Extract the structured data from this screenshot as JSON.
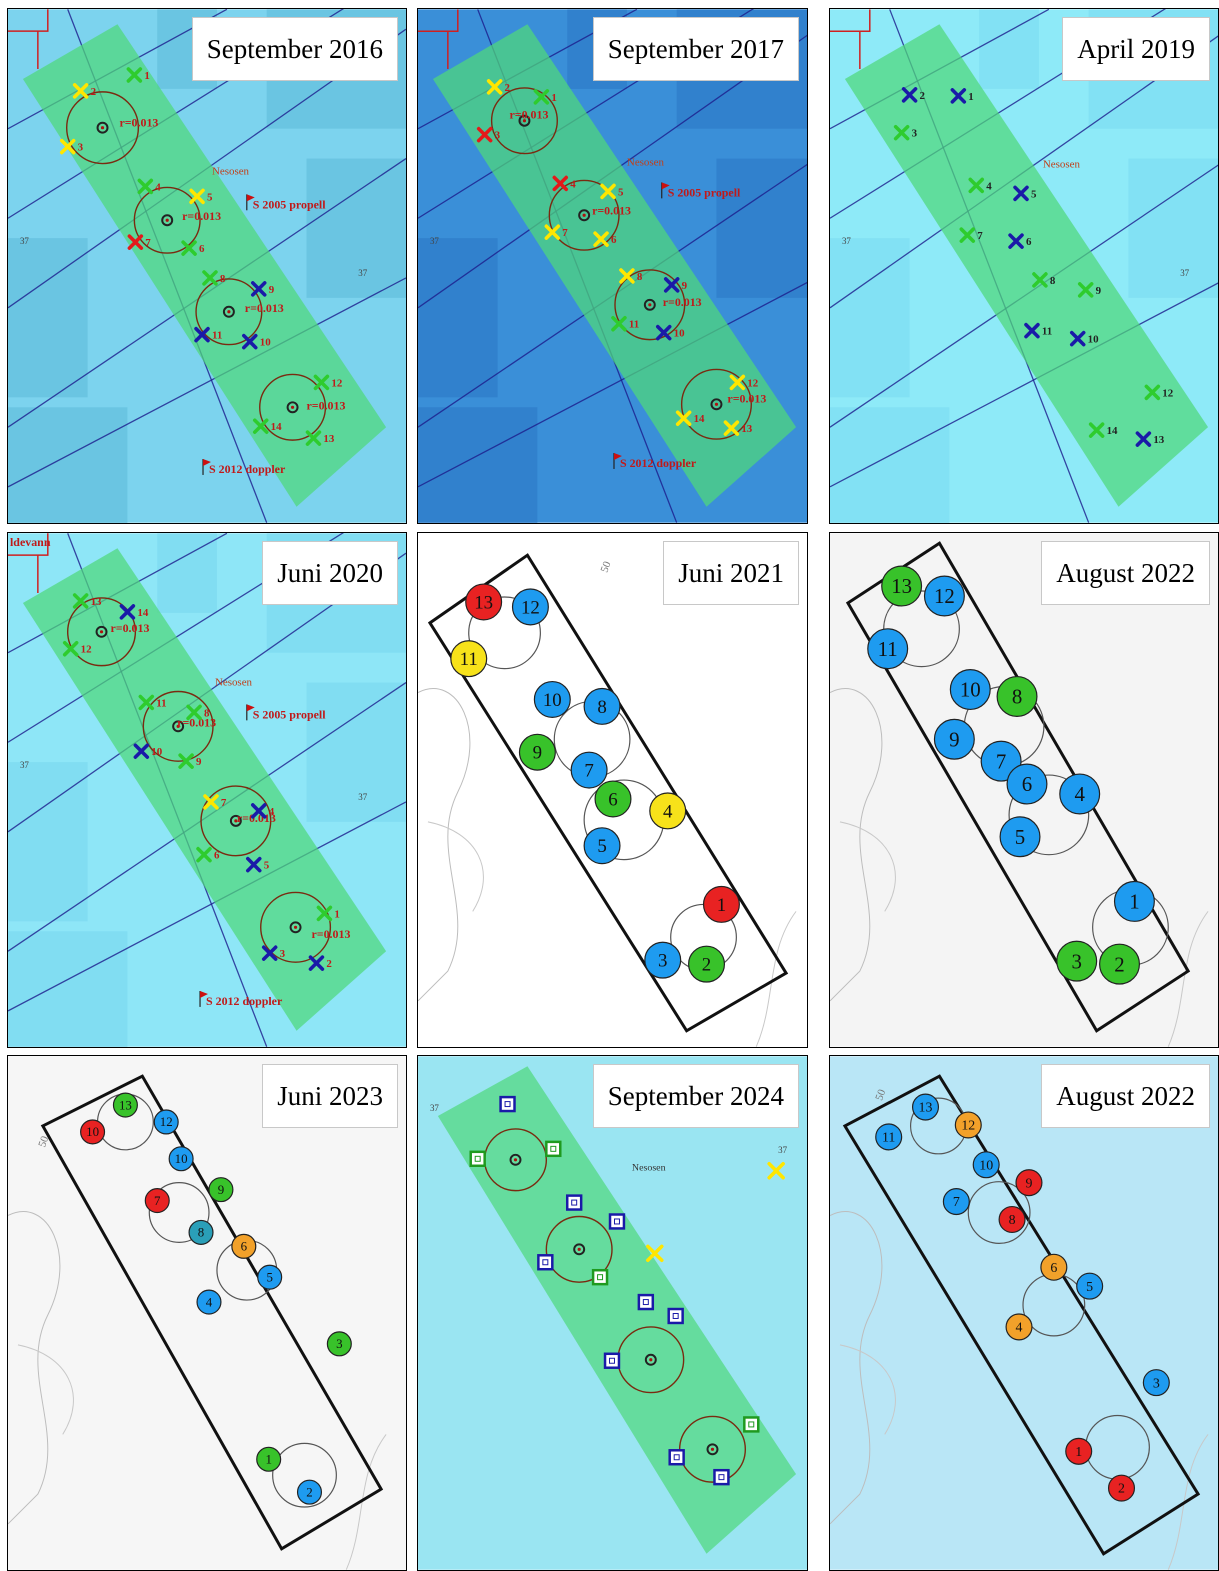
{
  "panels": [
    {
      "title": "September 2016",
      "type": "map",
      "bg": "#7cd3ee",
      "bg2": "#5bbad9",
      "place": "Nesosen",
      "flags": [
        "S 2005 propell",
        "S 2012 doppler"
      ],
      "rings": [
        {
          "label": "r=0.013"
        },
        {
          "label": "r=0.013"
        },
        {
          "label": "r=0.013"
        },
        {
          "label": "r=0.013"
        }
      ],
      "markers": [
        {
          "n": "1",
          "c": "green"
        },
        {
          "n": "2",
          "c": "yellow"
        },
        {
          "n": "3",
          "c": "yellow"
        },
        {
          "n": "4",
          "c": "green"
        },
        {
          "n": "5",
          "c": "yellow"
        },
        {
          "n": "6",
          "c": "green"
        },
        {
          "n": "7",
          "c": "red"
        },
        {
          "n": "8",
          "c": "green"
        },
        {
          "n": "9",
          "c": "blue"
        },
        {
          "n": "10",
          "c": "blue"
        },
        {
          "n": "11",
          "c": "blue"
        },
        {
          "n": "12",
          "c": "green"
        },
        {
          "n": "13",
          "c": "green"
        },
        {
          "n": "14",
          "c": "green"
        }
      ],
      "depths": [
        "37",
        "37"
      ]
    },
    {
      "title": "September 2017",
      "type": "map",
      "bg": "#3a8fd8",
      "bg2": "#2a77c4",
      "place": "Nesosen",
      "flags": [
        "S 2005 propell",
        "S 2012 doppler"
      ],
      "rings": [
        {
          "label": "r=0.013"
        },
        {
          "label": "r=0.013"
        },
        {
          "label": "r=0.013"
        },
        {
          "label": "r=0.013"
        }
      ],
      "markers": [
        {
          "n": "1",
          "c": "green"
        },
        {
          "n": "2",
          "c": "yellow"
        },
        {
          "n": "3",
          "c": "red"
        },
        {
          "n": "4",
          "c": "red"
        },
        {
          "n": "5",
          "c": "yellow"
        },
        {
          "n": "6",
          "c": "yellow"
        },
        {
          "n": "7",
          "c": "yellow"
        },
        {
          "n": "8",
          "c": "yellow"
        },
        {
          "n": "9",
          "c": "blue"
        },
        {
          "n": "10",
          "c": "blue"
        },
        {
          "n": "11",
          "c": "green"
        },
        {
          "n": "12",
          "c": "yellow"
        },
        {
          "n": "13",
          "c": "yellow"
        },
        {
          "n": "14",
          "c": "yellow"
        }
      ],
      "depths": [
        "37"
      ]
    },
    {
      "title": "April 2019",
      "type": "map",
      "bg": "#8eeaf8",
      "bg2": "#78d8f0",
      "place": "Nesosen",
      "flags": [],
      "rings": [],
      "markers": [
        {
          "n": "1",
          "c": "blue"
        },
        {
          "n": "2",
          "c": "blue"
        },
        {
          "n": "3",
          "c": "green"
        },
        {
          "n": "4",
          "c": "green"
        },
        {
          "n": "5",
          "c": "blue"
        },
        {
          "n": "6",
          "c": "blue"
        },
        {
          "n": "7",
          "c": "green"
        },
        {
          "n": "8",
          "c": "green"
        },
        {
          "n": "9",
          "c": "green"
        },
        {
          "n": "10",
          "c": "blue"
        },
        {
          "n": "11",
          "c": "blue"
        },
        {
          "n": "12",
          "c": "green"
        },
        {
          "n": "13",
          "c": "blue"
        },
        {
          "n": "14",
          "c": "green"
        }
      ],
      "depths": [
        "37",
        "37"
      ]
    },
    {
      "title": "Juni 2020",
      "type": "map",
      "bg": "#8ee6f7",
      "bg2": "#76d6ee",
      "place": "Nesosen",
      "flags": [
        "S 2005 propell",
        "S 2012 doppler"
      ],
      "corner_text": "ldevann",
      "rings": [
        {
          "label": "r=0.013"
        },
        {
          "label": "r=0.013"
        },
        {
          "label": "r=0.013"
        },
        {
          "label": "r=0.013"
        }
      ],
      "markers": [
        {
          "n": "13",
          "c": "green"
        },
        {
          "n": "14",
          "c": "blue"
        },
        {
          "n": "12",
          "c": "green"
        },
        {
          "n": "11",
          "c": "green"
        },
        {
          "n": "8",
          "c": "green"
        },
        {
          "n": "10",
          "c": "blue"
        },
        {
          "n": "9",
          "c": "green"
        },
        {
          "n": "7",
          "c": "yellow"
        },
        {
          "n": "4",
          "c": "blue"
        },
        {
          "n": "6",
          "c": "green"
        },
        {
          "n": "5",
          "c": "blue"
        },
        {
          "n": "1",
          "c": "green"
        },
        {
          "n": "3",
          "c": "blue"
        },
        {
          "n": "2",
          "c": "blue"
        }
      ],
      "depths": [
        "37",
        "37"
      ]
    },
    {
      "title": "Juni 2021",
      "type": "circles",
      "bg": "#ffffff",
      "contour": "50",
      "markers": [
        {
          "n": "13",
          "c": "red"
        },
        {
          "n": "12",
          "c": "blue"
        },
        {
          "n": "11",
          "c": "yellow"
        },
        {
          "n": "10",
          "c": "blue"
        },
        {
          "n": "8",
          "c": "blue"
        },
        {
          "n": "9",
          "c": "green"
        },
        {
          "n": "7",
          "c": "blue"
        },
        {
          "n": "6",
          "c": "green"
        },
        {
          "n": "4",
          "c": "yellow"
        },
        {
          "n": "5",
          "c": "blue"
        },
        {
          "n": "1",
          "c": "red"
        },
        {
          "n": "3",
          "c": "blue"
        },
        {
          "n": "2",
          "c": "green"
        }
      ]
    },
    {
      "title": "August 2022",
      "type": "circles",
      "bg": "#f4f4f4",
      "markers": [
        {
          "n": "13",
          "c": "green"
        },
        {
          "n": "12",
          "c": "blue"
        },
        {
          "n": "11",
          "c": "blue"
        },
        {
          "n": "10",
          "c": "blue"
        },
        {
          "n": "8",
          "c": "green"
        },
        {
          "n": "9",
          "c": "blue"
        },
        {
          "n": "7",
          "c": "blue"
        },
        {
          "n": "6",
          "c": "blue"
        },
        {
          "n": "4",
          "c": "blue"
        },
        {
          "n": "5",
          "c": "blue"
        },
        {
          "n": "1",
          "c": "blue"
        },
        {
          "n": "3",
          "c": "green"
        },
        {
          "n": "2",
          "c": "green"
        }
      ]
    },
    {
      "title": "Juni 2023",
      "type": "circles",
      "bg": "#f6f6f6",
      "contour": "50",
      "markers": [
        {
          "n": "13",
          "c": "green"
        },
        {
          "n": "12",
          "c": "blue"
        },
        {
          "n": "10",
          "c": "red"
        },
        {
          "n": "10",
          "c": "blue"
        },
        {
          "n": "9",
          "c": "green"
        },
        {
          "n": "7",
          "c": "red"
        },
        {
          "n": "8",
          "c": "teal"
        },
        {
          "n": "6",
          "c": "orange"
        },
        {
          "n": "5",
          "c": "blue"
        },
        {
          "n": "4",
          "c": "blue"
        },
        {
          "n": "3",
          "c": "green"
        },
        {
          "n": "1",
          "c": "green"
        },
        {
          "n": "2",
          "c": "blue"
        }
      ]
    },
    {
      "title": "September 2024",
      "type": "map",
      "bg": "#9af0f6",
      "bg2": "#7edee8",
      "place": "Nesosen",
      "flags": [],
      "rings": [
        {
          "label": ""
        },
        {
          "label": ""
        },
        {
          "label": ""
        },
        {
          "label": ""
        }
      ],
      "markers": [],
      "depths": [
        "37",
        "37"
      ]
    },
    {
      "title": "August 2022",
      "type": "circles",
      "bg": "#b9e6f6",
      "contour": "50",
      "markers": [
        {
          "n": "13",
          "c": "blue"
        },
        {
          "n": "12",
          "c": "orange"
        },
        {
          "n": "11",
          "c": "blue"
        },
        {
          "n": "10",
          "c": "blue"
        },
        {
          "n": "9",
          "c": "red"
        },
        {
          "n": "7",
          "c": "blue"
        },
        {
          "n": "8",
          "c": "red"
        },
        {
          "n": "6",
          "c": "orange"
        },
        {
          "n": "5",
          "c": "blue"
        },
        {
          "n": "4",
          "c": "orange"
        },
        {
          "n": "3",
          "c": "blue"
        },
        {
          "n": "1",
          "c": "red"
        },
        {
          "n": "2",
          "c": "red"
        }
      ]
    }
  ],
  "colors": {
    "green": "#2ecc2e",
    "yellow": "#ffe600",
    "red": "#e41a1a",
    "blue": "#1a1aa8",
    "circle_blue": "#1e9bf0",
    "circle_green": "#38c22a",
    "circle_red": "#e82222",
    "circle_yellow": "#f7e21a",
    "circle_orange": "#f2a12a",
    "circle_teal": "#2a9fb8",
    "band": "#4fd87a",
    "ring": "#7a2a10",
    "flag": "#cc1010",
    "label_red": "#c01a1a"
  }
}
